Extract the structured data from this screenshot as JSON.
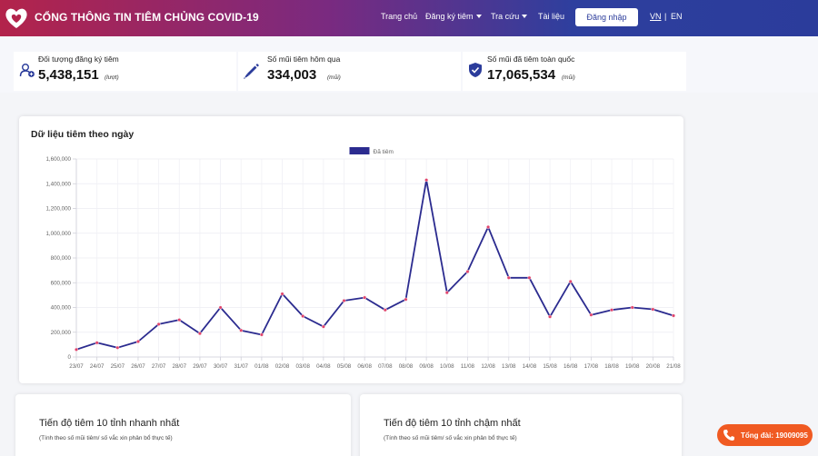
{
  "header": {
    "brand": "CỔNG THÔNG TIN TIÊM CHỦNG COVID-19",
    "nav": {
      "home": "Trang chủ",
      "register": "Đăng ký tiêm",
      "lookup": "Tra cứu",
      "docs": "Tài liệu"
    },
    "login_label": "Đăng nhập",
    "lang_vn": "VN",
    "lang_sep": "|",
    "lang_en": "EN"
  },
  "stats": [
    {
      "label": "Đối tượng đăng ký tiêm",
      "value": "5,438,151",
      "unit": "(lượt)",
      "icon": "user-plus-icon"
    },
    {
      "label": "Số mũi tiêm hôm qua",
      "value": "334,003",
      "unit": "(mũi)",
      "icon": "syringe-icon"
    },
    {
      "label": "Số mũi đã tiêm toàn quốc",
      "value": "17,065,534",
      "unit": "(mũi)",
      "icon": "shield-check-icon"
    }
  ],
  "chart_section": {
    "title": "Dữ liệu tiêm theo ngày"
  },
  "chart_data": {
    "type": "line",
    "categories": [
      "23/07",
      "24/07",
      "25/07",
      "26/07",
      "27/07",
      "28/07",
      "29/07",
      "30/07",
      "31/07",
      "01/08",
      "02/08",
      "03/08",
      "04/08",
      "05/08",
      "06/08",
      "07/08",
      "08/08",
      "09/08",
      "10/08",
      "11/08",
      "12/08",
      "13/08",
      "14/08",
      "15/08",
      "16/08",
      "17/08",
      "18/08",
      "19/08",
      "20/08",
      "21/08"
    ],
    "series": [
      {
        "name": "Đã tiêm",
        "values": [
          60000,
          115000,
          75000,
          125000,
          265000,
          300000,
          190000,
          400000,
          215000,
          180000,
          510000,
          330000,
          245000,
          455000,
          480000,
          380000,
          465000,
          1430000,
          520000,
          690000,
          1050000,
          640000,
          640000,
          325000,
          610000,
          340000,
          380000,
          400000,
          385000,
          334003
        ]
      }
    ],
    "y_ticks": [
      "0",
      "200,000",
      "400,000",
      "600,000",
      "800,000",
      "1,000,000",
      "1,200,000",
      "1,400,000",
      "1,600,000"
    ],
    "ylim": [
      0,
      1600000
    ],
    "legend": "top-center",
    "grid": true,
    "colors": {
      "line": "#2b2b8f",
      "point": "#e0436b",
      "legend_swatch": "#2b2b8f"
    }
  },
  "progress": [
    {
      "title": "Tiến độ tiêm 10 tỉnh nhanh nhất",
      "subtitle": "(Tính theo số mũi tiêm/ số vắc xin phân bổ thực tế)"
    },
    {
      "title": "Tiến độ tiêm 10 tỉnh chậm nhất",
      "subtitle": "(Tính theo số mũi tiêm/ số vắc xin phân bổ thực tế)"
    }
  ],
  "hotline": {
    "label": "Tổng đài: 19009095",
    "icon": "phone-icon"
  },
  "colors": {
    "accent": "#2b3c9b",
    "brand_red": "#b3234b",
    "hotline": "#f05a22"
  }
}
